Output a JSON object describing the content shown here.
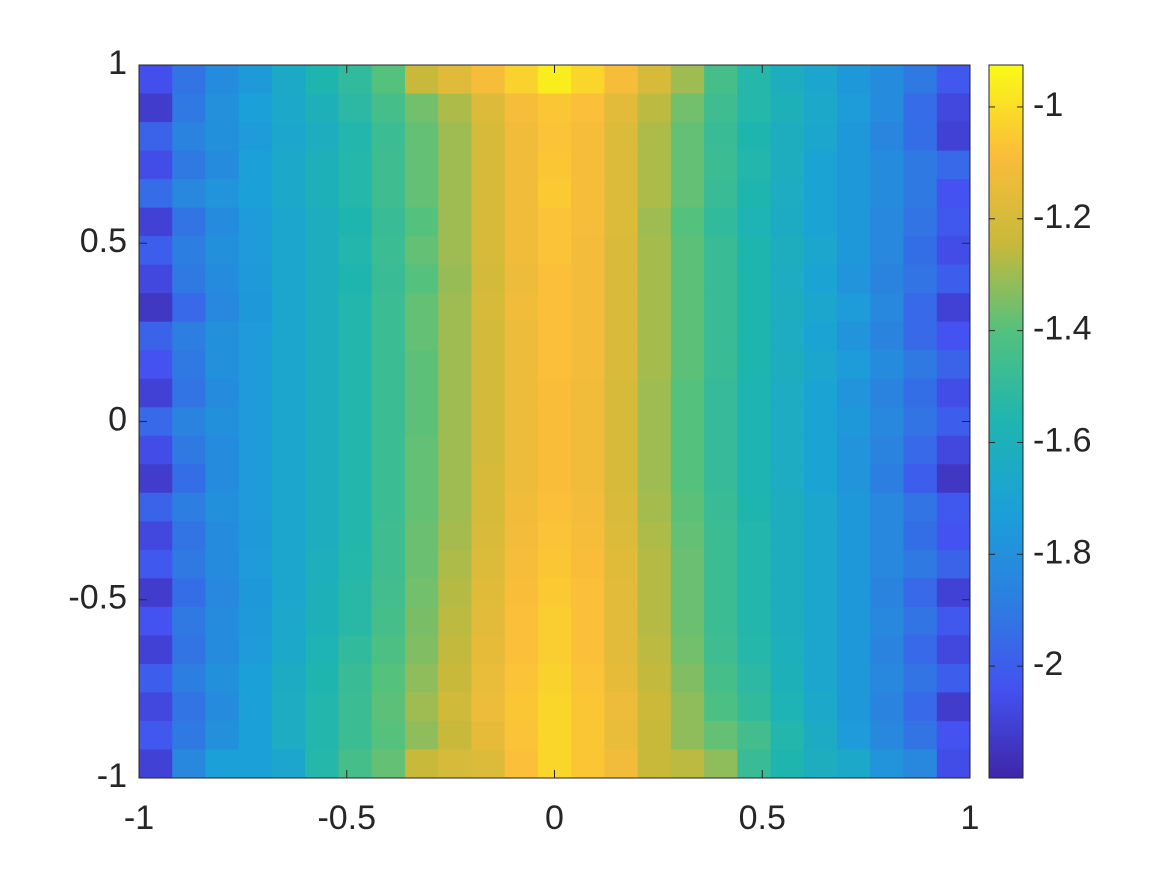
{
  "chart_data": {
    "type": "heatmap",
    "x": [
      -0.96,
      -0.88,
      -0.8,
      -0.72,
      -0.64,
      -0.56,
      -0.48,
      -0.4,
      -0.32,
      -0.24,
      -0.16,
      -0.08,
      0,
      0.08,
      0.16,
      0.24,
      0.32,
      0.4,
      0.48,
      0.56,
      0.64,
      0.72,
      0.8,
      0.88,
      0.96
    ],
    "y": [
      0.96,
      0.88,
      0.8,
      0.72,
      0.64,
      0.56,
      0.48,
      0.4,
      0.32,
      0.24,
      0.16,
      0.08,
      0,
      -0.08,
      -0.16,
      -0.24,
      -0.32,
      -0.4,
      -0.48,
      -0.56,
      -0.64,
      -0.72,
      -0.8,
      -0.88,
      -0.96
    ],
    "z": [
      [
        -2.05,
        -1.92,
        -1.82,
        -1.75,
        -1.65,
        -1.56,
        -1.5,
        -1.4,
        -1.24,
        -1.17,
        -1.1,
        -1.03,
        -0.96,
        -1.02,
        -1.1,
        -1.2,
        -1.3,
        -1.44,
        -1.54,
        -1.62,
        -1.68,
        -1.76,
        -1.82,
        -1.9,
        -2.02
      ],
      [
        -2.12,
        -1.9,
        -1.8,
        -1.72,
        -1.66,
        -1.6,
        -1.52,
        -1.44,
        -1.36,
        -1.28,
        -1.18,
        -1.1,
        -1.06,
        -1.08,
        -1.16,
        -1.26,
        -1.36,
        -1.46,
        -1.54,
        -1.6,
        -1.66,
        -1.74,
        -1.82,
        -1.95,
        -2.08
      ],
      [
        -1.98,
        -1.86,
        -1.8,
        -1.74,
        -1.68,
        -1.62,
        -1.55,
        -1.47,
        -1.38,
        -1.3,
        -1.2,
        -1.12,
        -1.07,
        -1.1,
        -1.18,
        -1.28,
        -1.38,
        -1.48,
        -1.56,
        -1.62,
        -1.68,
        -1.76,
        -1.85,
        -1.94,
        -2.1
      ],
      [
        -2.06,
        -1.9,
        -1.82,
        -1.72,
        -1.66,
        -1.6,
        -1.54,
        -1.46,
        -1.38,
        -1.3,
        -1.2,
        -1.12,
        -1.06,
        -1.1,
        -1.18,
        -1.28,
        -1.38,
        -1.47,
        -1.55,
        -1.62,
        -1.7,
        -1.76,
        -1.82,
        -1.9,
        -1.96
      ],
      [
        -1.95,
        -1.84,
        -1.78,
        -1.72,
        -1.66,
        -1.6,
        -1.54,
        -1.46,
        -1.38,
        -1.3,
        -1.2,
        -1.12,
        -1.05,
        -1.1,
        -1.18,
        -1.28,
        -1.38,
        -1.48,
        -1.56,
        -1.63,
        -1.7,
        -1.76,
        -1.82,
        -1.9,
        -2.04
      ],
      [
        -2.1,
        -1.92,
        -1.82,
        -1.74,
        -1.68,
        -1.62,
        -1.56,
        -1.48,
        -1.4,
        -1.3,
        -1.2,
        -1.12,
        -1.07,
        -1.1,
        -1.18,
        -1.3,
        -1.4,
        -1.5,
        -1.58,
        -1.64,
        -1.7,
        -1.76,
        -1.84,
        -1.92,
        -2.02
      ],
      [
        -2.0,
        -1.88,
        -1.8,
        -1.74,
        -1.68,
        -1.62,
        -1.55,
        -1.47,
        -1.38,
        -1.3,
        -1.2,
        -1.12,
        -1.07,
        -1.11,
        -1.19,
        -1.29,
        -1.39,
        -1.48,
        -1.56,
        -1.62,
        -1.68,
        -1.76,
        -1.84,
        -1.94,
        -2.06
      ],
      [
        -2.08,
        -1.9,
        -1.82,
        -1.75,
        -1.68,
        -1.62,
        -1.56,
        -1.48,
        -1.4,
        -1.31,
        -1.21,
        -1.13,
        -1.08,
        -1.11,
        -1.19,
        -1.29,
        -1.39,
        -1.48,
        -1.56,
        -1.63,
        -1.7,
        -1.78,
        -1.86,
        -1.92,
        -2.0
      ],
      [
        -2.14,
        -1.96,
        -1.84,
        -1.76,
        -1.68,
        -1.62,
        -1.55,
        -1.47,
        -1.38,
        -1.3,
        -1.2,
        -1.12,
        -1.08,
        -1.11,
        -1.19,
        -1.29,
        -1.39,
        -1.48,
        -1.56,
        -1.62,
        -1.68,
        -1.74,
        -1.84,
        -1.96,
        -2.1
      ],
      [
        -1.98,
        -1.88,
        -1.8,
        -1.74,
        -1.68,
        -1.62,
        -1.55,
        -1.47,
        -1.38,
        -1.3,
        -1.21,
        -1.13,
        -1.08,
        -1.11,
        -1.19,
        -1.29,
        -1.39,
        -1.48,
        -1.56,
        -1.63,
        -1.7,
        -1.78,
        -1.86,
        -1.96,
        -2.04
      ],
      [
        -2.04,
        -1.9,
        -1.8,
        -1.74,
        -1.68,
        -1.62,
        -1.55,
        -1.47,
        -1.39,
        -1.3,
        -1.21,
        -1.13,
        -1.08,
        -1.11,
        -1.19,
        -1.29,
        -1.39,
        -1.48,
        -1.56,
        -1.62,
        -1.68,
        -1.74,
        -1.82,
        -1.9,
        -1.98
      ],
      [
        -2.1,
        -1.92,
        -1.82,
        -1.74,
        -1.68,
        -1.62,
        -1.55,
        -1.47,
        -1.39,
        -1.3,
        -1.21,
        -1.13,
        -1.09,
        -1.12,
        -1.2,
        -1.3,
        -1.4,
        -1.49,
        -1.57,
        -1.63,
        -1.7,
        -1.78,
        -1.86,
        -1.94,
        -2.06
      ],
      [
        -1.96,
        -1.86,
        -1.8,
        -1.74,
        -1.68,
        -1.62,
        -1.55,
        -1.47,
        -1.39,
        -1.3,
        -1.21,
        -1.13,
        -1.09,
        -1.12,
        -1.2,
        -1.3,
        -1.4,
        -1.49,
        -1.57,
        -1.63,
        -1.7,
        -1.76,
        -1.84,
        -1.92,
        -2.0
      ],
      [
        -2.06,
        -1.9,
        -1.82,
        -1.74,
        -1.68,
        -1.62,
        -1.55,
        -1.47,
        -1.38,
        -1.3,
        -1.21,
        -1.13,
        -1.09,
        -1.12,
        -1.2,
        -1.3,
        -1.4,
        -1.49,
        -1.57,
        -1.63,
        -1.7,
        -1.78,
        -1.86,
        -1.96,
        -2.08
      ],
      [
        -2.12,
        -1.94,
        -1.82,
        -1.74,
        -1.68,
        -1.62,
        -1.55,
        -1.47,
        -1.38,
        -1.3,
        -1.2,
        -1.13,
        -1.09,
        -1.12,
        -1.2,
        -1.3,
        -1.4,
        -1.49,
        -1.57,
        -1.63,
        -1.7,
        -1.78,
        -1.88,
        -2.0,
        -2.14
      ],
      [
        -1.98,
        -1.88,
        -1.8,
        -1.74,
        -1.68,
        -1.62,
        -1.55,
        -1.47,
        -1.38,
        -1.3,
        -1.2,
        -1.12,
        -1.08,
        -1.11,
        -1.19,
        -1.29,
        -1.39,
        -1.48,
        -1.56,
        -1.62,
        -1.68,
        -1.76,
        -1.84,
        -1.92,
        -2.02
      ],
      [
        -2.08,
        -1.92,
        -1.82,
        -1.75,
        -1.68,
        -1.62,
        -1.55,
        -1.46,
        -1.37,
        -1.29,
        -1.19,
        -1.11,
        -1.07,
        -1.1,
        -1.18,
        -1.28,
        -1.38,
        -1.47,
        -1.55,
        -1.62,
        -1.68,
        -1.76,
        -1.84,
        -1.94,
        -2.04
      ],
      [
        -2.02,
        -1.9,
        -1.82,
        -1.74,
        -1.68,
        -1.61,
        -1.54,
        -1.46,
        -1.37,
        -1.28,
        -1.18,
        -1.1,
        -1.06,
        -1.09,
        -1.17,
        -1.27,
        -1.37,
        -1.47,
        -1.55,
        -1.62,
        -1.68,
        -1.76,
        -1.84,
        -1.9,
        -1.98
      ],
      [
        -2.12,
        -1.94,
        -1.84,
        -1.76,
        -1.68,
        -1.6,
        -1.53,
        -1.45,
        -1.36,
        -1.27,
        -1.17,
        -1.09,
        -1.05,
        -1.08,
        -1.16,
        -1.27,
        -1.37,
        -1.47,
        -1.55,
        -1.62,
        -1.68,
        -1.76,
        -1.86,
        -1.96,
        -2.1
      ],
      [
        -2.04,
        -1.9,
        -1.82,
        -1.75,
        -1.67,
        -1.6,
        -1.53,
        -1.44,
        -1.35,
        -1.26,
        -1.16,
        -1.08,
        -1.04,
        -1.08,
        -1.16,
        -1.27,
        -1.37,
        -1.47,
        -1.55,
        -1.62,
        -1.68,
        -1.76,
        -1.84,
        -1.92,
        -2.02
      ],
      [
        -2.1,
        -1.92,
        -1.82,
        -1.74,
        -1.66,
        -1.58,
        -1.5,
        -1.42,
        -1.34,
        -1.25,
        -1.15,
        -1.08,
        -1.04,
        -1.08,
        -1.16,
        -1.26,
        -1.36,
        -1.46,
        -1.54,
        -1.61,
        -1.68,
        -1.76,
        -1.86,
        -1.96,
        -2.08
      ],
      [
        -2.0,
        -1.88,
        -1.8,
        -1.72,
        -1.64,
        -1.56,
        -1.48,
        -1.4,
        -1.32,
        -1.24,
        -1.14,
        -1.07,
        -1.03,
        -1.07,
        -1.15,
        -1.25,
        -1.34,
        -1.44,
        -1.52,
        -1.6,
        -1.68,
        -1.76,
        -1.84,
        -1.92,
        -2.0
      ],
      [
        -2.08,
        -1.92,
        -1.82,
        -1.72,
        -1.63,
        -1.55,
        -1.47,
        -1.39,
        -1.3,
        -1.22,
        -1.13,
        -1.06,
        -1.02,
        -1.06,
        -1.13,
        -1.23,
        -1.32,
        -1.42,
        -1.5,
        -1.58,
        -1.66,
        -1.76,
        -1.86,
        -1.96,
        -2.12
      ],
      [
        -2.02,
        -1.9,
        -1.8,
        -1.72,
        -1.63,
        -1.55,
        -1.47,
        -1.4,
        -1.32,
        -1.24,
        -1.15,
        -1.07,
        -1.02,
        -1.06,
        -1.14,
        -1.24,
        -1.32,
        -1.38,
        -1.45,
        -1.55,
        -1.64,
        -1.74,
        -1.84,
        -1.92,
        -2.04
      ],
      [
        -2.1,
        -1.84,
        -1.72,
        -1.72,
        -1.68,
        -1.54,
        -1.44,
        -1.38,
        -1.24,
        -1.2,
        -1.18,
        -1.08,
        -1.02,
        -1.06,
        -1.12,
        -1.24,
        -1.26,
        -1.32,
        -1.48,
        -1.56,
        -1.62,
        -1.66,
        -1.78,
        -1.84,
        -2.06
      ]
    ],
    "xlim": [
      -1,
      1
    ],
    "ylim": [
      -1,
      1
    ],
    "xticks": [
      -1,
      -0.5,
      0,
      0.5,
      1
    ],
    "yticks": [
      -1,
      -0.5,
      0,
      0.5,
      1
    ],
    "clim": [
      -2.2,
      -0.925
    ],
    "cticks": [
      -2,
      -1.8,
      -1.6,
      -1.4,
      -1.2,
      -1
    ],
    "colormap": [
      "#3e26a8",
      "#4352f0",
      "#2c7fe0",
      "#1ba0d8",
      "#1eb5b0",
      "#52c17e",
      "#c8b93a",
      "#fbbd3a",
      "#f9fb15"
    ]
  }
}
